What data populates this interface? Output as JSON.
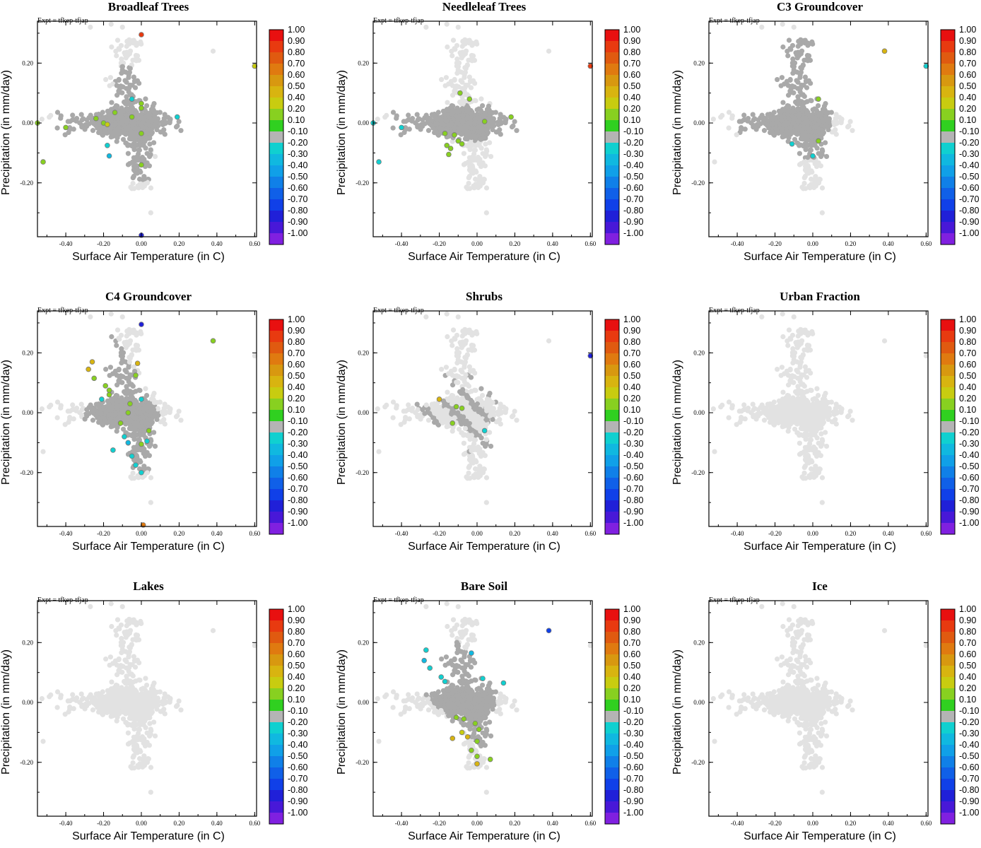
{
  "figure": {
    "expt_label": "Expt = tfkep-tfjap",
    "xlabel": "Surface Air Temperature (in C)",
    "ylabel": "Precipitation (in mm/day)",
    "x_ticks": [
      "-0.40",
      "-0.20",
      "0.00",
      "0.20",
      "0.40",
      "0.60"
    ],
    "y_ticks": [
      "0.20",
      "0.00",
      "-0.20"
    ]
  },
  "colorbar": {
    "labels": [
      "1.00",
      "0.90",
      "0.80",
      "0.70",
      "0.60",
      "0.50",
      "0.40",
      "0.20",
      "0.10",
      "-0.10",
      "-0.20",
      "-0.30",
      "-0.40",
      "-0.50",
      "-0.60",
      "-0.70",
      "-0.80",
      "-0.90",
      "-1.00"
    ],
    "colors": [
      "#e81010",
      "#e83a10",
      "#e05a10",
      "#e07a10",
      "#d89810",
      "#d8b410",
      "#c8cc10",
      "#88d020",
      "#30d020",
      "#b4b4b4",
      "#10d0d0",
      "#10b8e0",
      "#10a0e8",
      "#1080e8",
      "#1060e8",
      "#1040e8",
      "#2020d8",
      "#4818d8",
      "#8020e0"
    ]
  },
  "chart_data": [
    {
      "type": "scatter",
      "title": "Broadleaf Trees",
      "xlim": [
        -0.55,
        0.61
      ],
      "ylim": [
        -0.38,
        0.34
      ],
      "highlighted_points": [
        {
          "x": 0.0,
          "y": 0.295,
          "v": 0.8
        },
        {
          "x": 0.6,
          "y": 0.19,
          "v": 0.3
        },
        {
          "x": -0.52,
          "y": -0.13,
          "v": 0.2
        },
        {
          "x": -0.55,
          "y": 0.0,
          "v": 0.2
        },
        {
          "x": -0.4,
          "y": -0.015,
          "v": 0.2
        },
        {
          "x": -0.24,
          "y": 0.015,
          "v": 0.2
        },
        {
          "x": -0.2,
          "y": 0.0,
          "v": 0.2
        },
        {
          "x": -0.18,
          "y": -0.005,
          "v": 0.35
        },
        {
          "x": -0.14,
          "y": 0.035,
          "v": 0.2
        },
        {
          "x": -0.05,
          "y": 0.02,
          "v": 0.2
        },
        {
          "x": 0.0,
          "y": 0.065,
          "v": 0.2
        },
        {
          "x": 0.0,
          "y": 0.05,
          "v": 0.15
        },
        {
          "x": -0.05,
          "y": 0.08,
          "v": -0.2
        },
        {
          "x": 0.0,
          "y": -0.035,
          "v": 0.2
        },
        {
          "x": 0.0,
          "y": -0.14,
          "v": 0.2
        },
        {
          "x": -0.17,
          "y": -0.11,
          "v": -0.3
        },
        {
          "x": -0.18,
          "y": -0.075,
          "v": -0.2
        },
        {
          "x": 0.19,
          "y": 0.02,
          "v": -0.2
        },
        {
          "x": 0.0,
          "y": -0.375,
          "v": -0.8
        }
      ]
    },
    {
      "type": "scatter",
      "title": "Needleleaf Trees",
      "xlim": [
        -0.55,
        0.61
      ],
      "ylim": [
        -0.38,
        0.34
      ],
      "highlighted_points": [
        {
          "x": 0.6,
          "y": 0.19,
          "v": 0.8
        },
        {
          "x": -0.55,
          "y": 0.0,
          "v": -0.2
        },
        {
          "x": -0.52,
          "y": -0.13,
          "v": -0.2
        },
        {
          "x": -0.4,
          "y": -0.015,
          "v": -0.2
        },
        {
          "x": -0.09,
          "y": 0.1,
          "v": 0.2
        },
        {
          "x": -0.04,
          "y": 0.08,
          "v": 0.2
        },
        {
          "x": 0.04,
          "y": 0.005,
          "v": 0.2
        },
        {
          "x": 0.18,
          "y": 0.02,
          "v": 0.2
        },
        {
          "x": -0.17,
          "y": -0.035,
          "v": 0.2
        },
        {
          "x": -0.12,
          "y": -0.04,
          "v": 0.2
        },
        {
          "x": -0.16,
          "y": -0.075,
          "v": 0.2
        },
        {
          "x": -0.14,
          "y": -0.085,
          "v": 0.2
        },
        {
          "x": -0.1,
          "y": -0.06,
          "v": 0.2
        },
        {
          "x": -0.08,
          "y": -0.07,
          "v": 0.2
        },
        {
          "x": -0.15,
          "y": -0.105,
          "v": 0.2
        }
      ]
    },
    {
      "type": "scatter",
      "title": "C3 Groundcover",
      "xlim": [
        -0.55,
        0.61
      ],
      "ylim": [
        -0.38,
        0.34
      ],
      "highlighted_points": [
        {
          "x": 0.38,
          "y": 0.24,
          "v": 0.4
        },
        {
          "x": 0.6,
          "y": 0.19,
          "v": -0.2
        },
        {
          "x": 0.03,
          "y": 0.08,
          "v": 0.2
        },
        {
          "x": 0.03,
          "y": -0.06,
          "v": 0.2
        },
        {
          "x": -0.11,
          "y": -0.07,
          "v": -0.2
        },
        {
          "x": 0.0,
          "y": -0.11,
          "v": -0.2
        }
      ]
    },
    {
      "type": "scatter",
      "title": "C4 Groundcover",
      "xlim": [
        -0.55,
        0.61
      ],
      "ylim": [
        -0.38,
        0.34
      ],
      "highlighted_points": [
        {
          "x": 0.0,
          "y": 0.295,
          "v": -0.8
        },
        {
          "x": 0.38,
          "y": 0.24,
          "v": 0.2
        },
        {
          "x": -0.26,
          "y": 0.17,
          "v": 0.4
        },
        {
          "x": -0.28,
          "y": 0.145,
          "v": 0.4
        },
        {
          "x": -0.25,
          "y": 0.115,
          "v": 0.2
        },
        {
          "x": -0.02,
          "y": 0.165,
          "v": 0.4
        },
        {
          "x": -0.03,
          "y": 0.125,
          "v": 0.2
        },
        {
          "x": -0.19,
          "y": 0.09,
          "v": 0.2
        },
        {
          "x": -0.17,
          "y": 0.075,
          "v": 0.2
        },
        {
          "x": -0.17,
          "y": 0.06,
          "v": 0.2
        },
        {
          "x": -0.21,
          "y": 0.045,
          "v": -0.2
        },
        {
          "x": -0.06,
          "y": 0.03,
          "v": 0.2
        },
        {
          "x": -0.07,
          "y": 0.0,
          "v": 0.2
        },
        {
          "x": 0.0,
          "y": 0.045,
          "v": -0.2
        },
        {
          "x": -0.11,
          "y": -0.035,
          "v": 0.2
        },
        {
          "x": 0.04,
          "y": -0.06,
          "v": 0.2
        },
        {
          "x": -0.09,
          "y": -0.08,
          "v": -0.2
        },
        {
          "x": -0.07,
          "y": -0.1,
          "v": -0.3
        },
        {
          "x": 0.0,
          "y": -0.105,
          "v": 0.2
        },
        {
          "x": 0.03,
          "y": -0.095,
          "v": -0.2
        },
        {
          "x": -0.15,
          "y": -0.125,
          "v": -0.2
        },
        {
          "x": -0.05,
          "y": -0.145,
          "v": -0.2
        },
        {
          "x": -0.03,
          "y": -0.175,
          "v": -0.2
        },
        {
          "x": 0.0,
          "y": -0.2,
          "v": -0.2
        },
        {
          "x": 0.01,
          "y": -0.375,
          "v": 0.6
        }
      ]
    },
    {
      "type": "scatter",
      "title": "Shrubs",
      "xlim": [
        -0.55,
        0.61
      ],
      "ylim": [
        -0.38,
        0.34
      ],
      "highlighted_points": [
        {
          "x": 0.6,
          "y": 0.19,
          "v": -0.8
        },
        {
          "x": -0.2,
          "y": 0.045,
          "v": 0.4
        },
        {
          "x": -0.11,
          "y": 0.02,
          "v": 0.2
        },
        {
          "x": -0.08,
          "y": 0.015,
          "v": 0.2
        },
        {
          "x": -0.13,
          "y": -0.035,
          "v": 0.2
        },
        {
          "x": 0.04,
          "y": -0.06,
          "v": -0.2
        }
      ]
    },
    {
      "type": "scatter",
      "title": "Urban Fraction",
      "xlim": [
        -0.55,
        0.61
      ],
      "ylim": [
        -0.38,
        0.34
      ],
      "highlighted_points": []
    },
    {
      "type": "scatter",
      "title": "Lakes",
      "xlim": [
        -0.55,
        0.61
      ],
      "ylim": [
        -0.38,
        0.34
      ],
      "highlighted_points": []
    },
    {
      "type": "scatter",
      "title": "Bare Soil",
      "xlim": [
        -0.55,
        0.61
      ],
      "ylim": [
        -0.38,
        0.34
      ],
      "highlighted_points": [
        {
          "x": 0.38,
          "y": 0.24,
          "v": -0.7
        },
        {
          "x": -0.27,
          "y": 0.175,
          "v": -0.2
        },
        {
          "x": -0.28,
          "y": 0.14,
          "v": -0.3
        },
        {
          "x": -0.25,
          "y": 0.115,
          "v": -0.2
        },
        {
          "x": -0.03,
          "y": 0.165,
          "v": -0.3
        },
        {
          "x": -0.19,
          "y": 0.085,
          "v": -0.2
        },
        {
          "x": -0.17,
          "y": 0.07,
          "v": -0.2
        },
        {
          "x": 0.03,
          "y": 0.08,
          "v": -0.2
        },
        {
          "x": 0.14,
          "y": 0.065,
          "v": -0.2
        },
        {
          "x": -0.11,
          "y": -0.05,
          "v": 0.2
        },
        {
          "x": -0.07,
          "y": -0.055,
          "v": 0.2
        },
        {
          "x": -0.01,
          "y": -0.07,
          "v": 0.2
        },
        {
          "x": -0.08,
          "y": -0.1,
          "v": 0.3
        },
        {
          "x": 0.01,
          "y": -0.09,
          "v": 0.2
        },
        {
          "x": -0.05,
          "y": -0.115,
          "v": 0.4
        },
        {
          "x": -0.13,
          "y": -0.12,
          "v": 0.4
        },
        {
          "x": 0.0,
          "y": -0.13,
          "v": 0.2
        },
        {
          "x": -0.03,
          "y": -0.16,
          "v": 0.2
        },
        {
          "x": 0.0,
          "y": -0.18,
          "v": 0.2
        },
        {
          "x": 0.07,
          "y": -0.19,
          "v": 0.2
        },
        {
          "x": 0.0,
          "y": -0.205,
          "v": 0.4
        }
      ]
    },
    {
      "type": "scatter",
      "title": "Ice",
      "xlim": [
        -0.55,
        0.61
      ],
      "ylim": [
        -0.38,
        0.34
      ],
      "highlighted_points": []
    }
  ]
}
